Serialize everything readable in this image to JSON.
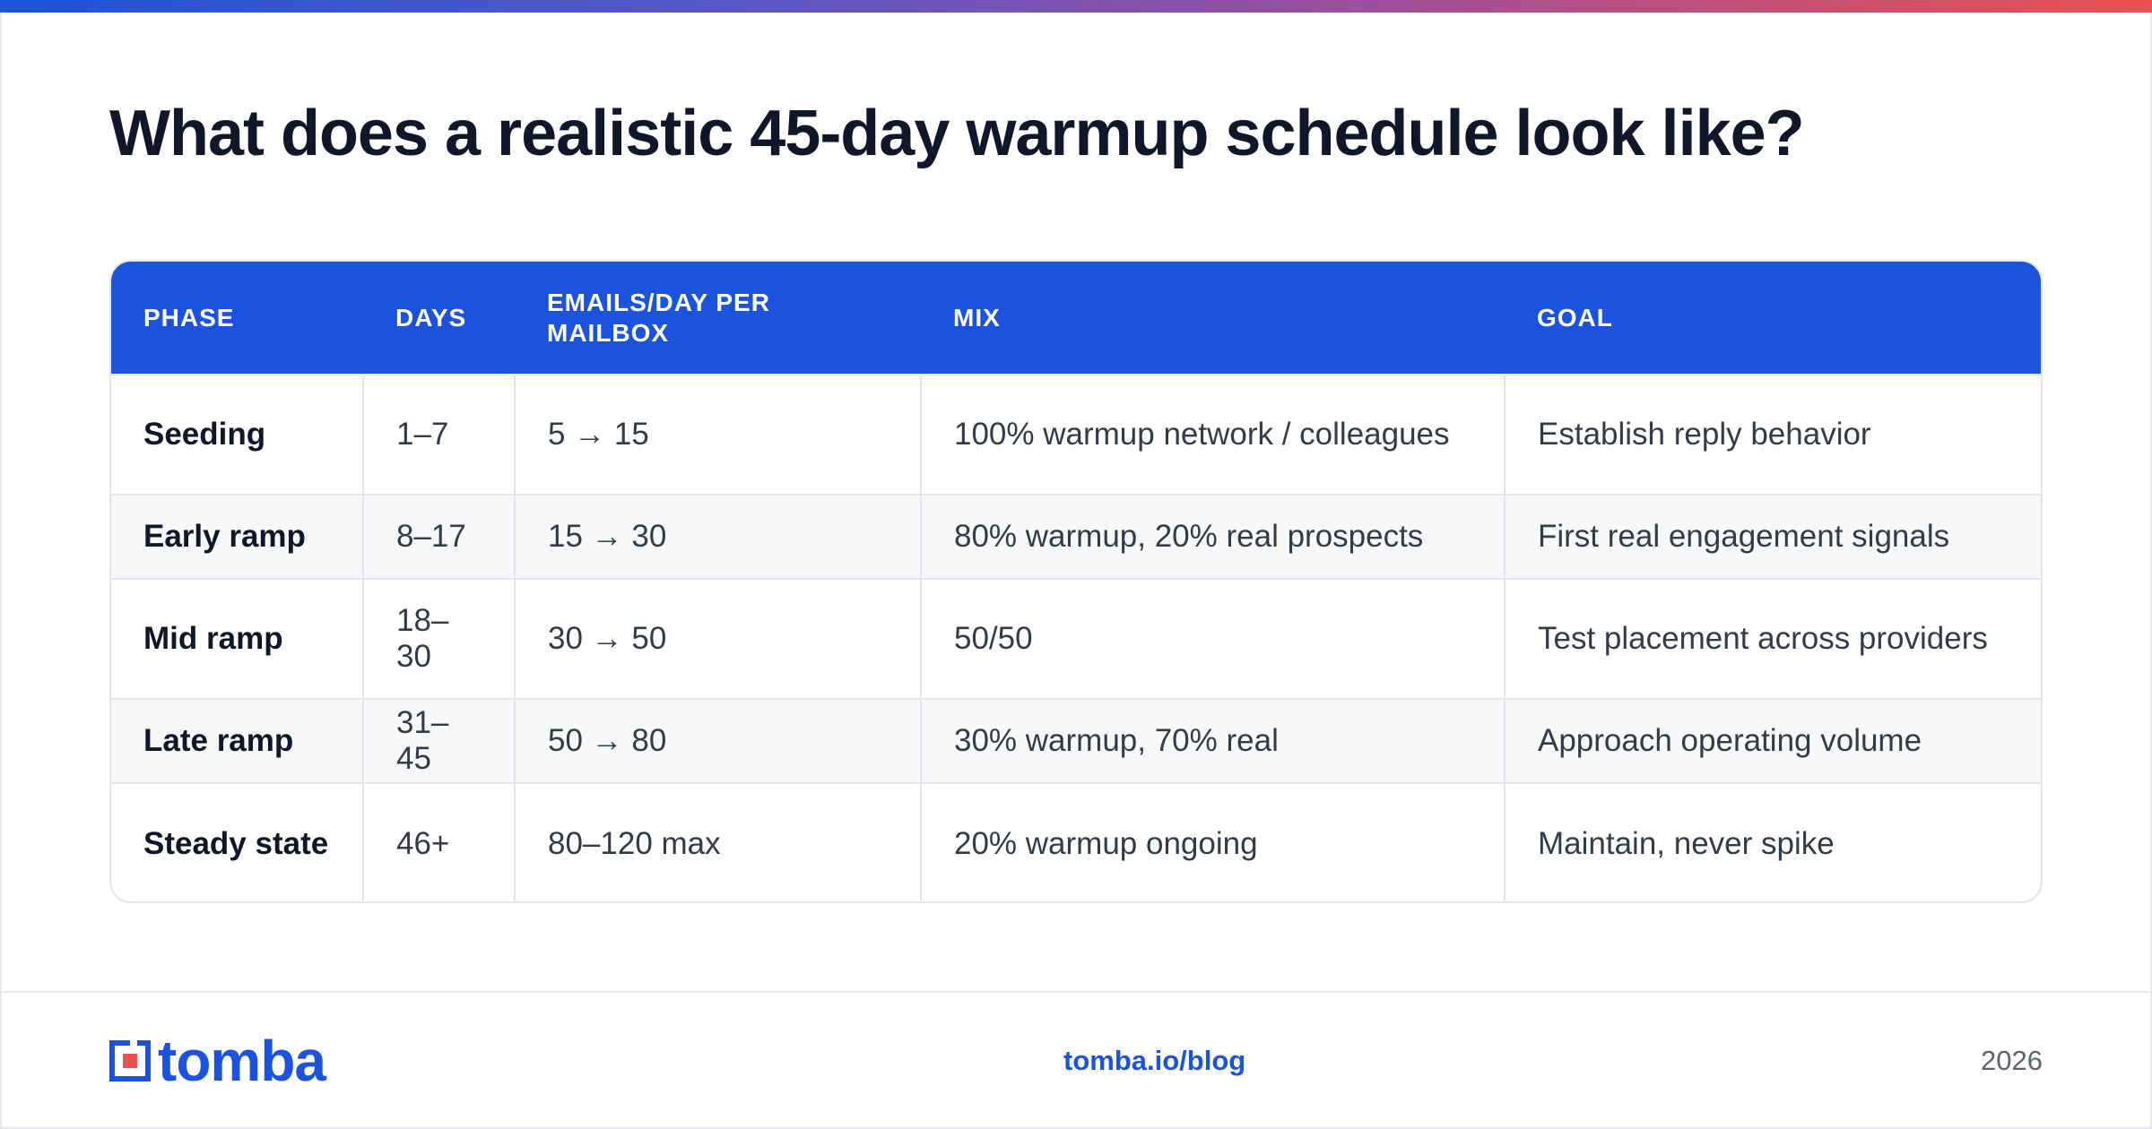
{
  "title": "What does a realistic 45-day warmup schedule look like?",
  "table": {
    "headers": [
      "PHASE",
      "DAYS",
      "EMAILS/DAY PER MAILBOX",
      "MIX",
      "GOAL"
    ],
    "rows": [
      [
        "Seeding",
        "1–7",
        "5 → 15",
        "100% warmup network / colleagues",
        "Establish reply behavior"
      ],
      [
        "Early ramp",
        "8–17",
        "15 → 30",
        "80% warmup, 20% real prospects",
        "First real engagement signals"
      ],
      [
        "Mid ramp",
        "18–30",
        "30 → 50",
        "50/50",
        "Test placement across providers"
      ],
      [
        "Late ramp",
        "31–45",
        "50 → 80",
        "30% warmup, 70% real",
        "Approach operating volume"
      ],
      [
        "Steady state",
        "46+",
        "80–120 max",
        "20% warmup ongoing",
        "Maintain, never spike"
      ]
    ]
  },
  "footer": {
    "logo_text": "tomba",
    "url": "tomba.io/blog",
    "year": "2026"
  },
  "colors": {
    "accent": "#1c53dc",
    "gradient_start": "#1d54d8",
    "gradient_end": "#e8514f",
    "logo_red": "#e8514f"
  },
  "icons": [
    "tomba-logo-icon"
  ]
}
